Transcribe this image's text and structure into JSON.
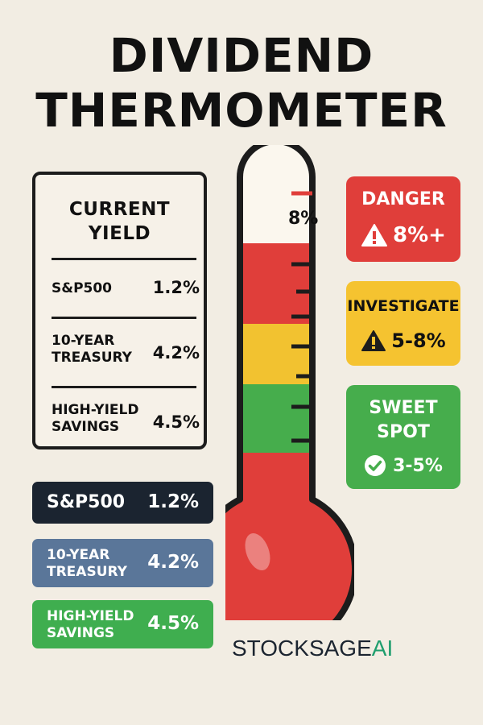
{
  "title": {
    "line1": "DIVIDEND",
    "line2": "THERMOMETER"
  },
  "card": {
    "heading_line1": "CURRENT",
    "heading_line2": "YIELD",
    "rows": [
      {
        "label": "S&P500",
        "value": "1.2%"
      },
      {
        "label_line1": "10-YEAR",
        "label_line2": "TREASURY",
        "value": "4.2%"
      },
      {
        "label_line1": "HIGH-YIELD",
        "label_line2": "SAVINGS",
        "value": "4.5%"
      }
    ]
  },
  "pills": [
    {
      "label": "S&P500",
      "value": "1.2%",
      "color": "#1b2430"
    },
    {
      "label_line1": "10-YEAR",
      "label_line2": "TREASURY",
      "value": "4.2%",
      "color": "#5a7699"
    },
    {
      "label_line1": "HIGH-YIELD",
      "label_line2": "SAVINGS",
      "value": "4.5%",
      "color": "#3fae4f"
    }
  ],
  "thermometer": {
    "marker_label": "8%",
    "colors": {
      "red": "#e03e3a",
      "yellow": "#f2c230",
      "green": "#46ad4c",
      "empty": "#fbf7ee",
      "outline": "#1c1c1c"
    }
  },
  "zones": {
    "danger": {
      "label": "DANGER",
      "range": "8%+",
      "color": "#e03e3a",
      "icon": "warning-icon"
    },
    "investigate": {
      "label": "INVESTIGATE",
      "range": "5-8%",
      "color": "#f5c330",
      "icon": "warning-icon"
    },
    "sweet_spot": {
      "label_line1": "SWEET",
      "label_line2": "SPOT",
      "range": "3-5%",
      "color": "#46ad4c",
      "icon": "check-circle-icon"
    }
  },
  "brand": {
    "name": "STOCKSAGE",
    "suffix": "AI"
  }
}
